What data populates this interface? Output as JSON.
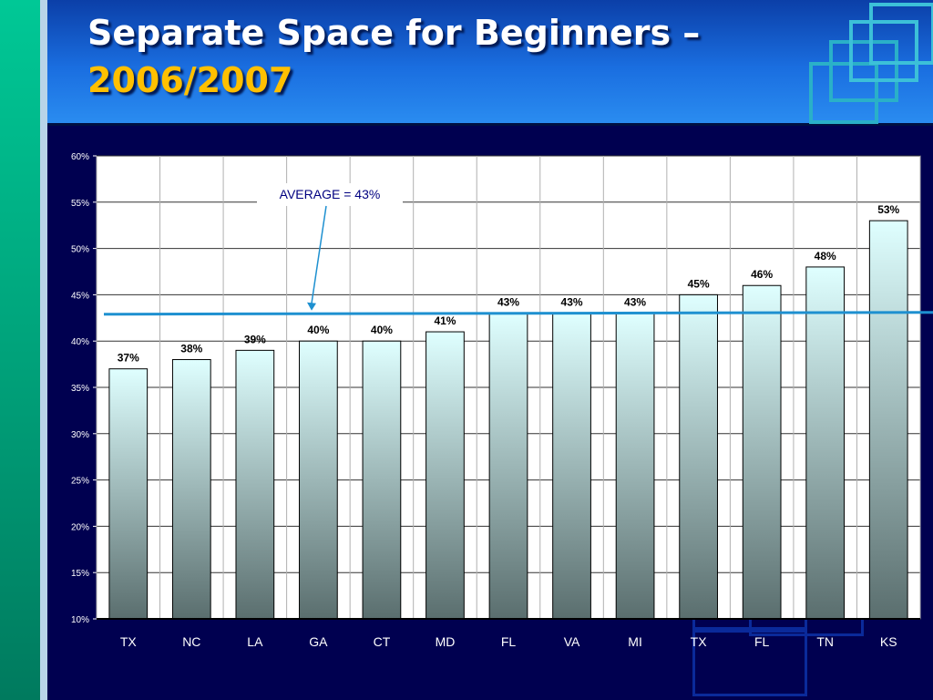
{
  "title": {
    "line1": "Separate Space for Beginners –",
    "line2": "2006/2007"
  },
  "colors": {
    "background": "#000050",
    "header": "#1a6ee0",
    "title_line2": "#ffc000",
    "bar_top": "#dfffff",
    "bar_bottom": "#5a6e6e",
    "average_line": "#1e90d0"
  },
  "chart_data": {
    "type": "bar",
    "categories": [
      "TX",
      "NC",
      "LA",
      "GA",
      "CT",
      "MD",
      "FL",
      "VA",
      "MI",
      "TX",
      "FL",
      "TN",
      "KS"
    ],
    "values": [
      37,
      38,
      39,
      40,
      40,
      41,
      43,
      43,
      43,
      45,
      46,
      48,
      53
    ],
    "value_labels": [
      "37%",
      "38%",
      "39%",
      "40%",
      "40%",
      "41%",
      "43%",
      "43%",
      "43%",
      "45%",
      "46%",
      "48%",
      "53%"
    ],
    "ylim": [
      10,
      60
    ],
    "y_ticks": [
      {
        "value": 10,
        "label": "10%"
      },
      {
        "value": 15,
        "label": "15%"
      },
      {
        "value": 20,
        "label": "20%"
      },
      {
        "value": 25,
        "label": "25%"
      },
      {
        "value": 30,
        "label": "30%"
      },
      {
        "value": 35,
        "label": "35%"
      },
      {
        "value": 40,
        "label": "40%"
      },
      {
        "value": 45,
        "label": "45%"
      },
      {
        "value": 50,
        "label": "50%"
      },
      {
        "value": 55,
        "label": "55%"
      },
      {
        "value": 60,
        "label": "60%"
      }
    ],
    "average": {
      "value": 43,
      "label": "AVERAGE = 43%"
    },
    "grid": true
  }
}
